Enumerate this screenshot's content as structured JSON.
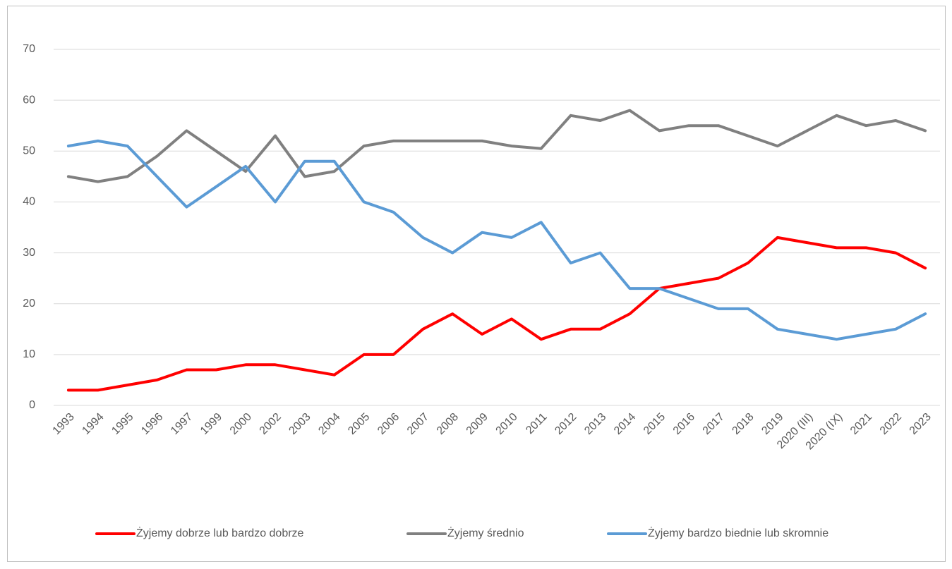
{
  "chart_data": {
    "type": "line",
    "categories": [
      "1993",
      "1994",
      "1995",
      "1996",
      "1997",
      "1999",
      "2000",
      "2002",
      "2003",
      "2004",
      "2005",
      "2006",
      "2007",
      "2008",
      "2009",
      "2010",
      "2011",
      "2012",
      "2013",
      "2014",
      "2015",
      "2016",
      "2017",
      "2018",
      "2019",
      "2020 (III)",
      "2020 (IX)",
      "2021",
      "2022",
      "2023"
    ],
    "series": [
      {
        "name": "Żyjemy dobrze lub bardzo dobrze",
        "color": "#ff0000",
        "values": [
          3,
          3,
          4,
          5,
          7,
          7,
          8,
          8,
          7,
          6,
          10,
          10,
          15,
          18,
          14,
          17,
          13,
          15,
          15,
          18,
          23,
          24,
          25,
          28,
          33,
          32,
          31,
          31,
          30,
          27
        ]
      },
      {
        "name": "Żyjemy średnio",
        "color": "#808080",
        "values": [
          45,
          44,
          45,
          49,
          54,
          50,
          46,
          53,
          45,
          46,
          51,
          52,
          52,
          52,
          52,
          51,
          50.5,
          57,
          56,
          58,
          54,
          55,
          55,
          53,
          51,
          54,
          57,
          55,
          56,
          54
        ]
      },
      {
        "name": "Żyjemy bardzo biednie lub skromnie",
        "color": "#5b9bd5",
        "values": [
          51,
          52,
          51,
          45,
          39,
          43,
          47,
          40,
          48,
          48,
          40,
          38,
          33,
          30,
          34,
          33,
          36,
          28,
          30,
          23,
          23,
          21,
          19,
          19,
          15,
          14,
          13,
          14,
          15,
          18
        ]
      }
    ],
    "ylim": [
      0,
      70
    ],
    "yticks": [
      0,
      10,
      20,
      30,
      40,
      50,
      60,
      70
    ],
    "grid": true,
    "legend": "bottom"
  }
}
